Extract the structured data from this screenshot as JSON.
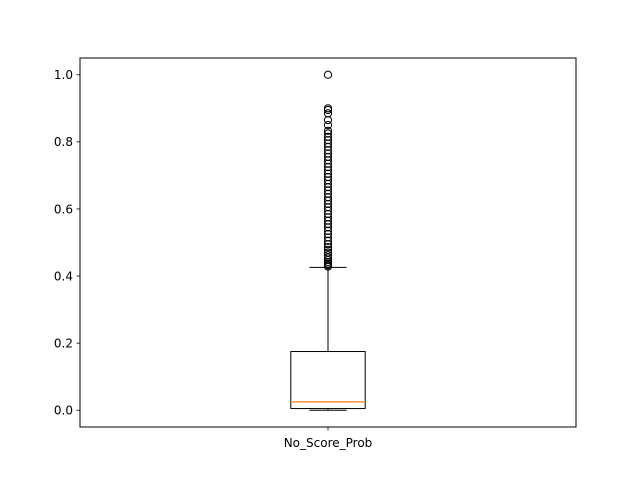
{
  "chart_data": {
    "type": "box",
    "categories": [
      "No_Score_Prob"
    ],
    "title": "",
    "xlabel": "",
    "ylabel": "",
    "ylim": [
      -0.05,
      1.05
    ],
    "yticks": [
      0.0,
      0.2,
      0.4,
      0.6,
      0.8,
      1.0
    ],
    "ytick_labels": [
      "0.0",
      "0.2",
      "0.4",
      "0.6",
      "0.8",
      "1.0"
    ],
    "grid": false,
    "boxes": [
      {
        "name": "No_Score_Prob",
        "whisker_low": 0.0,
        "q1": 0.005,
        "median": 0.025,
        "q3": 0.175,
        "whisker_high": 0.426,
        "outliers": [
          0.428,
          0.432,
          0.437,
          0.442,
          0.448,
          0.455,
          0.462,
          0.47,
          0.478,
          0.486,
          0.495,
          0.505,
          0.515,
          0.525,
          0.535,
          0.545,
          0.555,
          0.565,
          0.575,
          0.585,
          0.595,
          0.605,
          0.615,
          0.625,
          0.635,
          0.645,
          0.655,
          0.665,
          0.675,
          0.685,
          0.695,
          0.705,
          0.715,
          0.725,
          0.735,
          0.745,
          0.755,
          0.765,
          0.775,
          0.785,
          0.795,
          0.805,
          0.815,
          0.825,
          0.833,
          0.85,
          0.865,
          0.885,
          0.895,
          0.9,
          1.0
        ]
      }
    ],
    "colors": {
      "box": "#000000",
      "median": "#ff7f0e",
      "outlier": "#000000"
    }
  }
}
